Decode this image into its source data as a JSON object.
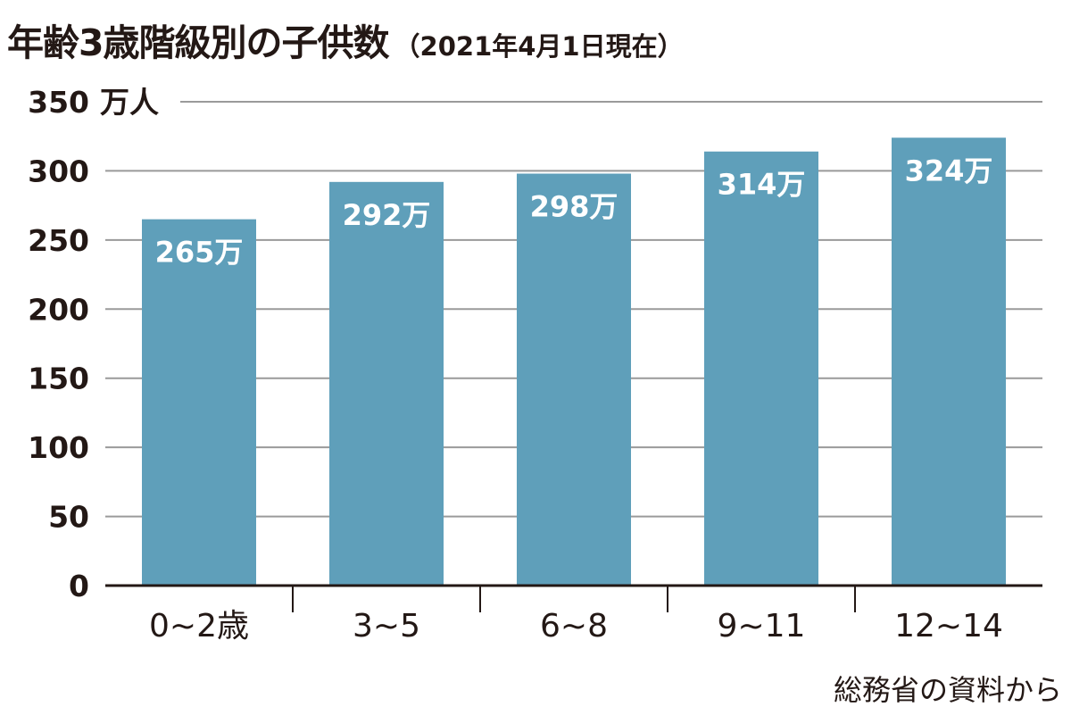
{
  "title": "年齢3歳階級別の子供数",
  "subtitle": "（2021年4月1日現在）",
  "source": "総務省の資料から",
  "colors": {
    "bar": "#5f9fba",
    "grid": "#9a9a9a",
    "axis": "#231815",
    "bar_label": "#ffffff"
  },
  "chart_data": {
    "type": "bar",
    "categories": [
      "0~2歳",
      "3~5",
      "6~8",
      "9~11",
      "12~14"
    ],
    "values": [
      265,
      292,
      298,
      314,
      324
    ],
    "value_labels": [
      "265万",
      "292万",
      "298万",
      "314万",
      "324万"
    ],
    "ylim": [
      0,
      350
    ],
    "yticks": [
      0,
      50,
      100,
      150,
      200,
      250,
      300,
      350
    ],
    "yunit": "万人",
    "grid": true
  }
}
